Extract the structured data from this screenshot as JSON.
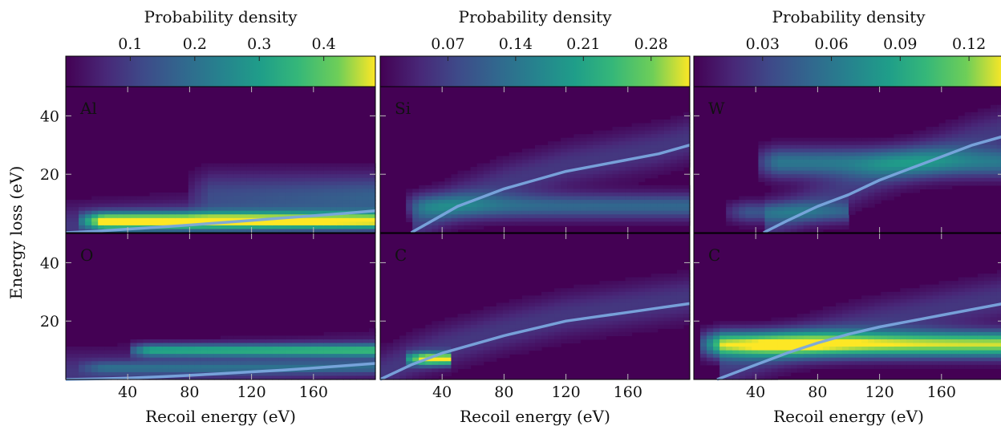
{
  "chart_data": [
    {
      "type": "heatmap",
      "colorbar": {
        "label": "Probability density",
        "ticks": [
          "0.1",
          "0.2",
          "0.3",
          "0.4"
        ],
        "range": [
          0,
          0.48
        ]
      },
      "panels": [
        {
          "label": "Al",
          "xlim": [
            0,
            200
          ],
          "ylim": [
            0,
            50
          ],
          "xticks": [
            "",
            "",
            "",
            ""
          ],
          "yticks": [
            "40",
            "20"
          ],
          "curve": {
            "x": [
              0,
              20,
              40,
              60,
              80,
              100,
              120,
              140,
              160,
              180,
              200
            ],
            "y": [
              0,
              0.5,
              1.2,
              1.9,
              2.6,
              3.4,
              4.2,
              5.0,
              5.8,
              6.6,
              7.5
            ]
          },
          "bands": [
            {
              "x0": 10,
              "x1": 200,
              "y": 4,
              "w": 2,
              "peak": 0.46
            },
            {
              "x0": 80,
              "x1": 200,
              "y": 14,
              "w": 5,
              "peak": 0.1
            }
          ]
        },
        {
          "label": "O",
          "xlim": [
            0,
            200
          ],
          "ylim": [
            0,
            50
          ],
          "xticks": [
            "40",
            "80",
            "120",
            "160"
          ],
          "yticks": [
            "40",
            "20"
          ],
          "curve": {
            "x": [
              0,
              20,
              40,
              60,
              80,
              100,
              120,
              140,
              160,
              180,
              200
            ],
            "y": [
              0,
              0.2,
              0.5,
              0.9,
              1.4,
              2.0,
              2.6,
              3.2,
              3.9,
              4.7,
              5.5
            ]
          },
          "bands": [
            {
              "x0": 40,
              "x1": 200,
              "y": 10,
              "w": 1.5,
              "peak": 0.3
            },
            {
              "x0": 10,
              "x1": 200,
              "y": 4,
              "w": 1.5,
              "peak": 0.12
            }
          ]
        }
      ],
      "xlabel": "Recoil energy (eV)",
      "ylabel": "Energy loss (eV)"
    },
    {
      "type": "heatmap",
      "colorbar": {
        "label": "Probability density",
        "ticks": [
          "0.07",
          "0.14",
          "0.21",
          "0.28"
        ],
        "range": [
          0,
          0.32
        ]
      },
      "panels": [
        {
          "label": "Si",
          "xlim": [
            0,
            200
          ],
          "ylim": [
            0,
            50
          ],
          "xticks": [
            "",
            "",
            "",
            ""
          ],
          "yticks": [
            "",
            ""
          ],
          "curve": {
            "x": [
              20,
              30,
              40,
              50,
              60,
              80,
              100,
              120,
              140,
              160,
              180,
              200
            ],
            "y": [
              0,
              3,
              6,
              9,
              11,
              15,
              18,
              21,
              23,
              25,
              27,
              30
            ]
          },
          "bands": [
            {
              "x0": 15,
              "x1": 200,
              "y": 9,
              "w": 3,
              "peak": 0.12
            }
          ]
        },
        {
          "label": "C",
          "xlim": [
            0,
            200
          ],
          "ylim": [
            0,
            50
          ],
          "xticks": [
            "40",
            "80",
            "120",
            "160"
          ],
          "yticks": [
            "",
            ""
          ],
          "curve": {
            "x": [
              0,
              20,
              40,
              60,
              80,
              100,
              120,
              140,
              160,
              180,
              200
            ],
            "y": [
              0,
              5,
              9,
              12,
              15,
              17.5,
              20,
              21.5,
              23,
              24.5,
              26
            ]
          },
          "bands": [
            {
              "x0": 15,
              "x1": 45,
              "y": 7,
              "w": 1.5,
              "peak": 0.3
            }
          ]
        }
      ],
      "xlabel": "Recoil energy (eV)",
      "ylabel": ""
    },
    {
      "type": "heatmap",
      "colorbar": {
        "label": "Probability density",
        "ticks": [
          "0.03",
          "0.06",
          "0.09",
          "0.12"
        ],
        "range": [
          0,
          0.135
        ]
      },
      "panels": [
        {
          "label": "W",
          "xlim": [
            0,
            200
          ],
          "ylim": [
            0,
            50
          ],
          "xticks": [
            "",
            "",
            "",
            ""
          ],
          "yticks": [
            "",
            ""
          ],
          "curve": {
            "x": [
              45,
              60,
              80,
              100,
              120,
              140,
              160,
              180,
              200
            ],
            "y": [
              0,
              4,
              9,
              13,
              18,
              22,
              26,
              30,
              33
            ]
          },
          "bands": [
            {
              "x0": 40,
              "x1": 200,
              "y": 24,
              "w": 3.5,
              "peak": 0.06
            },
            {
              "x0": 20,
              "x1": 100,
              "y": 7,
              "w": 2.5,
              "peak": 0.04
            }
          ]
        },
        {
          "label": "C",
          "xlim": [
            0,
            200
          ],
          "ylim": [
            0,
            50
          ],
          "xticks": [
            "40",
            "80",
            "120",
            "160"
          ],
          "yticks": [
            "",
            ""
          ],
          "curve": {
            "x": [
              15,
              20,
              40,
              60,
              80,
              100,
              120,
              140,
              160,
              180,
              200
            ],
            "y": [
              0,
              1,
              5,
              9,
              12.5,
              15.5,
              18,
              20,
              22,
              24,
              26
            ]
          },
          "bands": [
            {
              "x0": 5,
              "x1": 200,
              "y": 12,
              "w": 3,
              "peak": 0.13
            }
          ]
        }
      ],
      "xlabel": "Recoil energy (eV)",
      "ylabel": ""
    }
  ]
}
